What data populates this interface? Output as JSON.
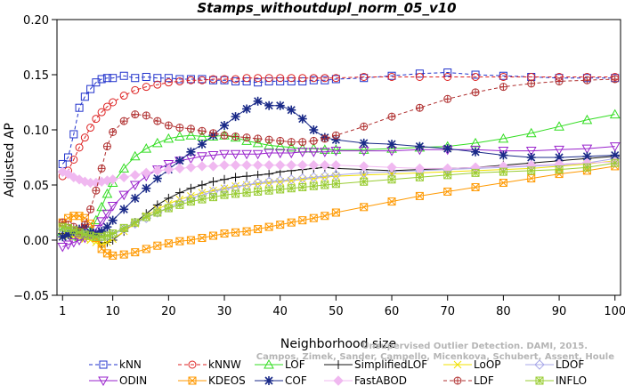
{
  "chart_data": {
    "type": "line",
    "title": "Stamps_withoutdupl_norm_05_v10",
    "xlabel": "Neighborhood size",
    "ylabel": "Adjusted AP",
    "xlim": [
      0,
      101
    ],
    "ylim": [
      -0.05,
      0.2
    ],
    "x_ticks": [
      1,
      10,
      20,
      30,
      40,
      50,
      60,
      70,
      80,
      90,
      100
    ],
    "y_ticks": [
      -0.05,
      0.0,
      0.05,
      0.1,
      0.15,
      0.2
    ],
    "y_tick_labels": [
      "−0.05",
      "0.00",
      "0.05",
      "0.10",
      "0.15",
      "0.20"
    ],
    "grid": false,
    "legend_position": "bottom",
    "x": [
      1,
      2,
      3,
      4,
      5,
      6,
      7,
      8,
      9,
      10,
      12,
      14,
      16,
      18,
      20,
      22,
      24,
      26,
      28,
      30,
      32,
      34,
      36,
      38,
      40,
      42,
      44,
      46,
      48,
      50,
      55,
      60,
      65,
      70,
      75,
      80,
      85,
      90,
      95,
      100
    ],
    "series": [
      {
        "name": "kNN",
        "color": "#2233cc",
        "marker": "square",
        "dashed": true,
        "values": [
          0.069,
          0.075,
          0.096,
          0.12,
          0.13,
          0.137,
          0.143,
          0.146,
          0.147,
          0.147,
          0.149,
          0.147,
          0.148,
          0.147,
          0.147,
          0.146,
          0.146,
          0.146,
          0.145,
          0.145,
          0.144,
          0.144,
          0.143,
          0.144,
          0.144,
          0.144,
          0.144,
          0.145,
          0.145,
          0.146,
          0.147,
          0.149,
          0.151,
          0.152,
          0.15,
          0.149,
          0.148,
          0.147,
          0.147,
          0.147
        ]
      },
      {
        "name": "kNNW",
        "color": "#dd2222",
        "marker": "circle",
        "dashed": true,
        "values": [
          0.058,
          0.063,
          0.073,
          0.084,
          0.093,
          0.102,
          0.11,
          0.116,
          0.121,
          0.125,
          0.131,
          0.136,
          0.139,
          0.141,
          0.143,
          0.144,
          0.145,
          0.145,
          0.146,
          0.146,
          0.146,
          0.147,
          0.147,
          0.147,
          0.147,
          0.147,
          0.147,
          0.147,
          0.147,
          0.147,
          0.148,
          0.148,
          0.148,
          0.148,
          0.148,
          0.148,
          0.148,
          0.148,
          0.148,
          0.148
        ]
      },
      {
        "name": "LOF",
        "color": "#33dd22",
        "marker": "triangle",
        "dashed": false,
        "values": [
          0.008,
          0.006,
          0.004,
          0.003,
          0.004,
          0.008,
          0.018,
          0.03,
          0.042,
          0.052,
          0.065,
          0.076,
          0.083,
          0.088,
          0.092,
          0.094,
          0.095,
          0.094,
          0.094,
          0.095,
          0.093,
          0.09,
          0.088,
          0.086,
          0.085,
          0.084,
          0.083,
          0.083,
          0.082,
          0.082,
          0.082,
          0.083,
          0.084,
          0.085,
          0.088,
          0.092,
          0.097,
          0.103,
          0.109,
          0.114
        ]
      },
      {
        "name": "SimplifiedLOF",
        "color": "#111111",
        "marker": "plus",
        "dashed": false,
        "values": [
          0.006,
          0.006,
          0.007,
          0.006,
          0.005,
          0.004,
          0.002,
          -0.003,
          -0.002,
          0.0,
          0.008,
          0.016,
          0.024,
          0.032,
          0.038,
          0.043,
          0.047,
          0.05,
          0.053,
          0.055,
          0.057,
          0.058,
          0.059,
          0.06,
          0.062,
          0.063,
          0.064,
          0.065,
          0.066,
          0.065,
          0.064,
          0.063,
          0.064,
          0.065,
          0.066,
          0.068,
          0.07,
          0.072,
          0.074,
          0.076
        ]
      },
      {
        "name": "LoOP",
        "color": "#f0e000",
        "marker": "cross",
        "dashed": false,
        "values": [
          0.004,
          0.004,
          0.003,
          0.002,
          0.001,
          0.0,
          -0.002,
          -0.004,
          -0.002,
          0.001,
          0.008,
          0.015,
          0.022,
          0.028,
          0.033,
          0.037,
          0.04,
          0.043,
          0.045,
          0.047,
          0.049,
          0.05,
          0.051,
          0.052,
          0.053,
          0.054,
          0.055,
          0.056,
          0.057,
          0.058,
          0.059,
          0.06,
          0.061,
          0.062,
          0.063,
          0.064,
          0.065,
          0.067,
          0.069,
          0.072
        ]
      },
      {
        "name": "LDOF",
        "color": "#a8a8e8",
        "marker": "diamond",
        "dashed": false,
        "values": [
          0.01,
          0.009,
          0.008,
          0.007,
          0.006,
          0.005,
          0.004,
          0.003,
          0.004,
          0.005,
          0.01,
          0.015,
          0.02,
          0.025,
          0.03,
          0.034,
          0.038,
          0.041,
          0.044,
          0.046,
          0.048,
          0.05,
          0.052,
          0.053,
          0.054,
          0.055,
          0.056,
          0.057,
          0.058,
          0.059,
          0.061,
          0.062,
          0.063,
          0.064,
          0.065,
          0.066,
          0.067,
          0.068,
          0.07,
          0.074
        ]
      },
      {
        "name": "ODIN",
        "color": "#9922cc",
        "marker": "triangle-down",
        "dashed": false,
        "values": [
          -0.006,
          -0.004,
          -0.002,
          0.0,
          0.002,
          0.005,
          0.01,
          0.017,
          0.024,
          0.031,
          0.041,
          0.05,
          0.058,
          0.064,
          0.069,
          0.072,
          0.074,
          0.076,
          0.077,
          0.078,
          0.078,
          0.078,
          0.078,
          0.079,
          0.079,
          0.079,
          0.08,
          0.08,
          0.08,
          0.081,
          0.081,
          0.081,
          0.082,
          0.082,
          0.082,
          0.081,
          0.081,
          0.082,
          0.083,
          0.085
        ]
      },
      {
        "name": "KDEOS",
        "color": "#ff9900",
        "marker": "square-x",
        "dashed": false,
        "values": [
          0.016,
          0.02,
          0.022,
          0.022,
          0.02,
          0.015,
          0.002,
          -0.008,
          -0.012,
          -0.014,
          -0.013,
          -0.011,
          -0.008,
          -0.005,
          -0.003,
          -0.001,
          0.0,
          0.002,
          0.004,
          0.006,
          0.007,
          0.008,
          0.01,
          0.012,
          0.014,
          0.016,
          0.018,
          0.02,
          0.022,
          0.025,
          0.03,
          0.035,
          0.04,
          0.044,
          0.048,
          0.052,
          0.056,
          0.06,
          0.063,
          0.067
        ]
      },
      {
        "name": "COF",
        "color": "#1a2a88",
        "marker": "asterisk",
        "dashed": false,
        "values": [
          0.003,
          0.005,
          0.008,
          0.01,
          0.012,
          0.007,
          0.006,
          0.008,
          0.012,
          0.018,
          0.028,
          0.038,
          0.047,
          0.056,
          0.064,
          0.072,
          0.08,
          0.087,
          0.095,
          0.104,
          0.112,
          0.119,
          0.126,
          0.122,
          0.122,
          0.118,
          0.11,
          0.1,
          0.093,
          0.091,
          0.088,
          0.087,
          0.085,
          0.083,
          0.08,
          0.077,
          0.075,
          0.075,
          0.076,
          0.077
        ]
      },
      {
        "name": "FastABOD",
        "color": "#f0b8f0",
        "marker": "diamond-filled",
        "dashed": false,
        "values": [
          0.062,
          0.06,
          0.057,
          0.055,
          0.053,
          0.052,
          0.052,
          0.053,
          0.054,
          0.055,
          0.057,
          0.059,
          0.061,
          0.063,
          0.064,
          0.065,
          0.066,
          0.067,
          0.067,
          0.068,
          0.068,
          0.068,
          0.068,
          0.068,
          0.068,
          0.068,
          0.068,
          0.068,
          0.068,
          0.068,
          0.067,
          0.066,
          0.065,
          0.065,
          0.066,
          0.067,
          0.068,
          0.069,
          0.07,
          0.071
        ]
      },
      {
        "name": "LDF",
        "color": "#b03030",
        "marker": "circle-plus",
        "dashed": true,
        "values": [
          0.016,
          0.014,
          0.012,
          0.008,
          0.014,
          0.028,
          0.045,
          0.065,
          0.085,
          0.098,
          0.108,
          0.114,
          0.113,
          0.108,
          0.104,
          0.102,
          0.101,
          0.099,
          0.097,
          0.095,
          0.094,
          0.093,
          0.092,
          0.091,
          0.09,
          0.089,
          0.089,
          0.09,
          0.092,
          0.095,
          0.103,
          0.112,
          0.12,
          0.128,
          0.134,
          0.139,
          0.142,
          0.144,
          0.145,
          0.146
        ]
      },
      {
        "name": "INFLO",
        "color": "#99cc33",
        "marker": "star-box",
        "dashed": false,
        "values": [
          0.012,
          0.011,
          0.009,
          0.007,
          0.005,
          0.004,
          0.003,
          0.003,
          0.004,
          0.006,
          0.011,
          0.016,
          0.021,
          0.025,
          0.029,
          0.032,
          0.035,
          0.037,
          0.039,
          0.041,
          0.042,
          0.043,
          0.044,
          0.045,
          0.046,
          0.047,
          0.048,
          0.049,
          0.05,
          0.051,
          0.053,
          0.055,
          0.057,
          0.059,
          0.061,
          0.062,
          0.063,
          0.064,
          0.066,
          0.07
        ]
      }
    ]
  },
  "watermark": {
    "line1": "Unsupervised Outlier Detection. DAMI, 2015.",
    "line2": "Campos, Zimek, Sander, Campello, Micenkova, Schubert, Assent, Houle"
  },
  "legend_order": [
    "kNN",
    "kNNW",
    "LOF",
    "SimplifiedLOF",
    "LoOP",
    "LDOF",
    "ODIN",
    "KDEOS",
    "COF",
    "FastABOD",
    "LDF",
    "INFLO"
  ]
}
